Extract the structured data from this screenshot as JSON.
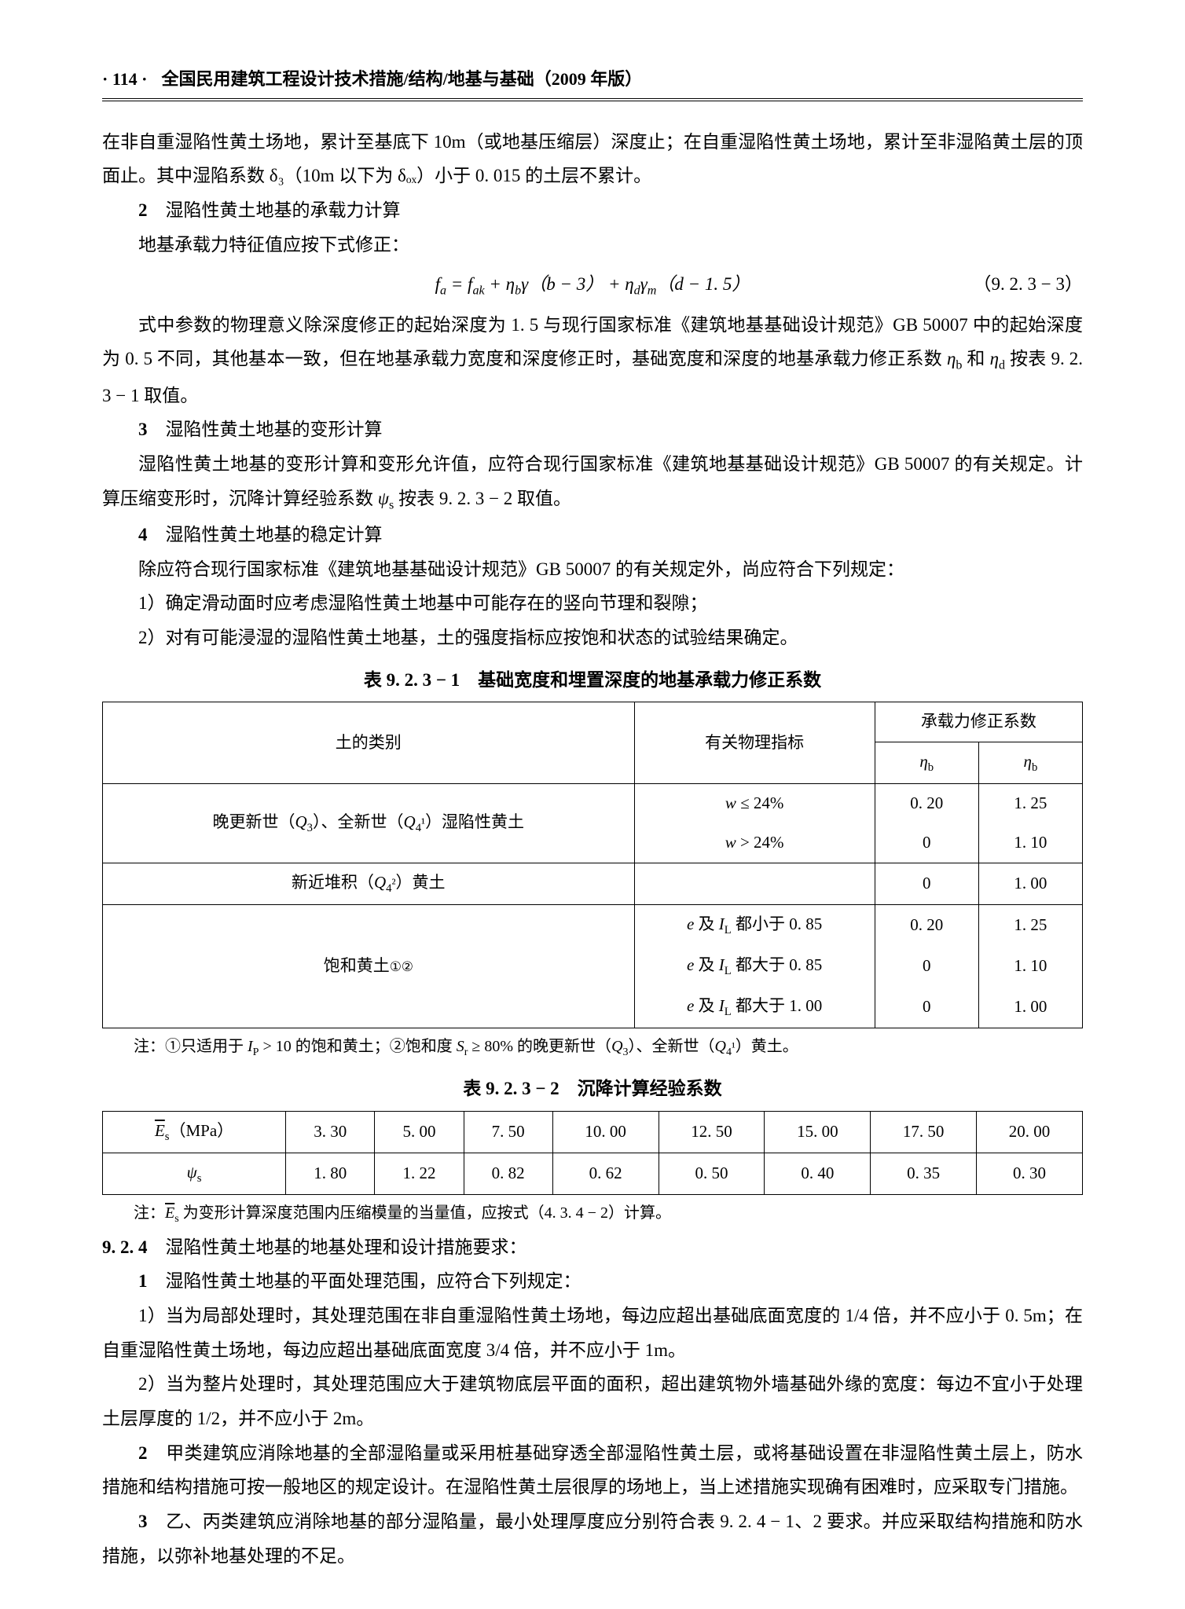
{
  "header": {
    "page_number": "· 114 ·",
    "title": "全国民用建筑工程设计技术措施/结构/地基与基础（2009 年版）"
  },
  "body": {
    "p1": "在非自重湿陷性黄土场地，累计至基底下 10m（或地基压缩层）深度止；在自重湿陷性黄土场地，累计至非湿陷黄土层的顶面止。其中湿陷系数 δ₃（10m 以下为 δₒₓ）小于 0. 015 的土层不累计。",
    "s2": {
      "num": "2",
      "ttl": "湿陷性黄土地基的承载力计算",
      "p1": "地基承载力特征值应按下式修正：",
      "eq": "fₐ = fₐₖ + ηᵦγ（b − 3） + η_d γ_m（d − 1. 5）",
      "eqn": "（9. 2. 3 − 3）",
      "p2": "式中参数的物理意义除深度修正的起始深度为 1. 5 与现行国家标准《建筑地基基础设计规范》GB 50007 中的起始深度为 0. 5 不同，其他基本一致，但在地基承载力宽度和深度修正时，基础宽度和深度的地基承载力修正系数 ηᵦ 和 η_d 按表 9. 2. 3 − 1 取值。"
    },
    "s3": {
      "num": "3",
      "ttl": "湿陷性黄土地基的变形计算",
      "p1": "湿陷性黄土地基的变形计算和变形允许值，应符合现行国家标准《建筑地基基础设计规范》GB 50007 的有关规定。计算压缩变形时，沉降计算经验系数 ψₕ 按表 9. 2. 3 − 2 取值。"
    },
    "s4": {
      "num": "4",
      "ttl": "湿陷性黄土地基的稳定计算",
      "p1": "除应符合现行国家标准《建筑地基基础设计规范》GB 50007 的有关规定外，尚应符合下列规定：",
      "i1": "1）确定滑动面时应考虑湿陷性黄土地基中可能存在的竖向节理和裂隙；",
      "i2": "2）对有可能浸湿的湿陷性黄土地基，土的强度指标应按饱和状态的试验结果确定。"
    }
  },
  "t1": {
    "caption": "表 9. 2. 3 − 1　基础宽度和埋置深度的地基承载力修正系数",
    "h": {
      "c1": "土的类别",
      "c2": "有关物理指标",
      "c3": "承载力修正系数",
      "c3a": "ηᵦ",
      "c3b": "ηᵨ"
    },
    "r1": {
      "a": "晚更新世（Q₃）、全新世（Q₄¹）湿陷性黄土",
      "b1": "w ≤ 24%",
      "b2": "w > 24%",
      "c1": "0. 20",
      "c2": "0",
      "d1": "1. 25",
      "d2": "1. 10"
    },
    "r2": {
      "a": "新近堆积（Q₄²）黄土",
      "c": "0",
      "d": "1. 00"
    },
    "r3": {
      "a": "饱和黄土①②",
      "b1": "e 及 I_L 都小于 0. 85",
      "b2": "e 及 I_L 都大于 0. 85",
      "b3": "e 及 I_L 都大于 1. 00",
      "c1": "0. 20",
      "c2": "0",
      "c3": "0",
      "d1": "1. 25",
      "d2": "1. 10",
      "d3": "1. 00"
    },
    "note": "注：①只适用于 I_P > 10 的饱和黄土；②饱和度 S_r ≥ 80% 的晚更新世（Q₃）、全新世（Q₄¹）黄土。"
  },
  "t2": {
    "caption": "表 9. 2. 3 − 2　沉降计算经验系数",
    "h": {
      "c0": "E̅ₛ（MPa）",
      "c1": "3. 30",
      "c2": "5. 00",
      "c3": "7. 50",
      "c4": "10. 00",
      "c5": "12. 50",
      "c6": "15. 00",
      "c7": "17. 50",
      "c8": "20. 00"
    },
    "r": {
      "c0": "ψₛ",
      "c1": "1. 80",
      "c2": "1. 22",
      "c3": "0. 82",
      "c4": "0. 62",
      "c5": "0. 50",
      "c6": "0. 40",
      "c7": "0. 35",
      "c8": "0. 30"
    },
    "note": "注：E̅ₛ 为变形计算深度范围内压缩模量的当量值，应按式（4. 3. 4 − 2）计算。"
  },
  "s924": {
    "num": "9. 2. 4",
    "ttl": "湿陷性黄土地基的地基处理和设计措施要求：",
    "n1": {
      "num": "1",
      "txt": "湿陷性黄土地基的平面处理范围，应符合下列规定："
    },
    "i1": "1）当为局部处理时，其处理范围在非自重湿陷性黄土场地，每边应超出基础底面宽度的 1/4 倍，并不应小于 0. 5m；在自重湿陷性黄土场地，每边应超出基础底面宽度 3/4 倍，并不应小于 1m。",
    "i2": "2）当为整片处理时，其处理范围应大于建筑物底层平面的面积，超出建筑物外墙基础外缘的宽度：每边不宜小于处理土层厚度的 1/2，并不应小于 2m。",
    "n2": {
      "num": "2",
      "txt": "甲类建筑应消除地基的全部湿陷量或采用桩基础穿透全部湿陷性黄土层，或将基础设置在非湿陷性黄土层上，防水措施和结构措施可按一般地区的规定设计。在湿陷性黄土层很厚的场地上，当上述措施实现确有困难时，应采取专门措施。"
    },
    "n3": {
      "num": "3",
      "txt": "乙、丙类建筑应消除地基的部分湿陷量，最小处理厚度应分别符合表 9. 2. 4 − 1、2 要求。并应采取结构措施和防水措施，以弥补地基处理的不足。"
    }
  }
}
